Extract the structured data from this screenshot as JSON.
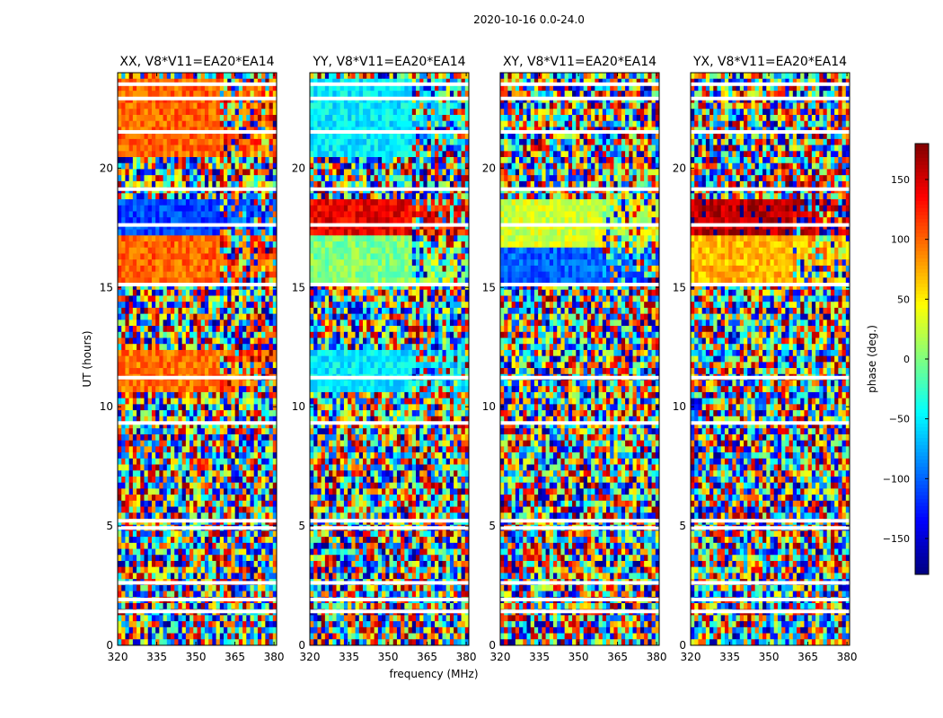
{
  "chart_data": {
    "type": "heatmap",
    "suptitle": "2020-10-16 0.0-24.0",
    "xlabel": "frequency (MHz)",
    "ylabel": "UT (hours)",
    "xlim": [
      320,
      381
    ],
    "ylim": [
      0,
      24
    ],
    "xticks": [
      320,
      335,
      350,
      365,
      380
    ],
    "yticks": [
      0,
      5,
      10,
      15,
      20
    ],
    "colormap": "jet",
    "colorbar": {
      "label": "phase (deg.)",
      "range": [
        -180,
        180
      ],
      "ticks": [
        150,
        100,
        50,
        0,
        -50,
        -100,
        -150
      ],
      "tick_labels": [
        "150",
        "100",
        "50",
        "0",
        "−50",
        "−100",
        "−150"
      ]
    },
    "panels": [
      {
        "title": "XX, V8*V11=EA20*EA14",
        "dominant_phase_deg": [
          {
            "ut_range": [
              17.3,
              18.7
            ],
            "phase": -110
          },
          {
            "ut_range": [
              15.2,
              17.3
            ],
            "phase": 100
          },
          {
            "ut_range": [
              20.4,
              23.8
            ],
            "phase": 100
          },
          {
            "ut_range": [
              10.6,
              12.5
            ],
            "phase": 95
          }
        ]
      },
      {
        "title": "YY, V8*V11=EA20*EA14",
        "dominant_phase_deg": [
          {
            "ut_range": [
              17.3,
              18.7
            ],
            "phase": 140
          },
          {
            "ut_range": [
              15.2,
              17.3
            ],
            "phase": 0
          },
          {
            "ut_range": [
              20.4,
              23.8
            ],
            "phase": -50
          },
          {
            "ut_range": [
              10.6,
              12.5
            ],
            "phase": -50
          }
        ]
      },
      {
        "title": "XY, V8*V11=EA20*EA14",
        "dominant_phase_deg": [
          {
            "ut_range": [
              16.8,
              18.7
            ],
            "phase": 30
          },
          {
            "ut_range": [
              15.2,
              16.8
            ],
            "phase": -100
          }
        ]
      },
      {
        "title": "YX, V8*V11=EA20*EA14",
        "dominant_phase_deg": [
          {
            "ut_range": [
              17.3,
              18.7
            ],
            "phase": 160
          },
          {
            "ut_range": [
              15.2,
              17.3
            ],
            "phase": 70
          }
        ]
      }
    ],
    "flagged_ut_gaps": [
      1.4,
      1.9,
      2.6,
      4.9,
      5.2,
      9.3,
      11.2,
      15.1,
      17.6,
      19.1,
      21.5,
      22.9,
      23.5
    ]
  }
}
